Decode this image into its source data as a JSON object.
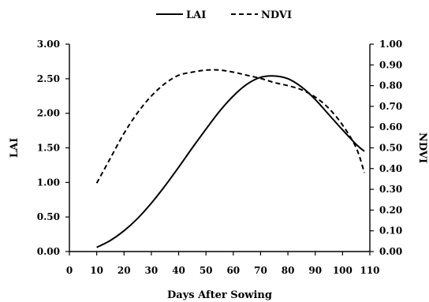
{
  "chart_data": {
    "type": "line",
    "xlabel": "Days After Sowing",
    "ylabel": "LAI",
    "y2label": "NDVI",
    "xlim": [
      0,
      110
    ],
    "xticks": [
      "0",
      "10",
      "20",
      "30",
      "40",
      "50",
      "60",
      "70",
      "80",
      "90",
      "100",
      "110"
    ],
    "ylim": [
      0,
      3
    ],
    "yticks": [
      "0.00",
      "0.50",
      "1.00",
      "1.50",
      "2.00",
      "2.50",
      "3.00"
    ],
    "y2lim": [
      0,
      1
    ],
    "y2ticks": [
      "0.00",
      "0.10",
      "0.20",
      "0.30",
      "0.40",
      "0.50",
      "0.60",
      "0.70",
      "0.80",
      "0.90",
      "1.00"
    ],
    "legend_position": "top-center",
    "grid": false,
    "series": [
      {
        "name": "LAI",
        "axis": "left",
        "style": "solid",
        "color": "#000000",
        "x": [
          10,
          15,
          20,
          25,
          30,
          35,
          40,
          45,
          50,
          55,
          60,
          65,
          70,
          75,
          80,
          85,
          90,
          95,
          100,
          105,
          108
        ],
        "values": [
          0.06,
          0.16,
          0.3,
          0.48,
          0.7,
          0.95,
          1.22,
          1.5,
          1.77,
          2.03,
          2.25,
          2.42,
          2.52,
          2.54,
          2.5,
          2.38,
          2.2,
          1.98,
          1.76,
          1.55,
          1.45
        ]
      },
      {
        "name": "NDVI",
        "axis": "right",
        "style": "dashed",
        "color": "#000000",
        "x": [
          10,
          15,
          20,
          25,
          30,
          35,
          40,
          45,
          50,
          55,
          60,
          65,
          70,
          75,
          80,
          85,
          90,
          95,
          100,
          105,
          108
        ],
        "values": [
          0.33,
          0.45,
          0.57,
          0.67,
          0.75,
          0.81,
          0.85,
          0.865,
          0.875,
          0.875,
          0.865,
          0.85,
          0.835,
          0.815,
          0.8,
          0.78,
          0.745,
          0.69,
          0.61,
          0.5,
          0.38
        ]
      }
    ]
  }
}
